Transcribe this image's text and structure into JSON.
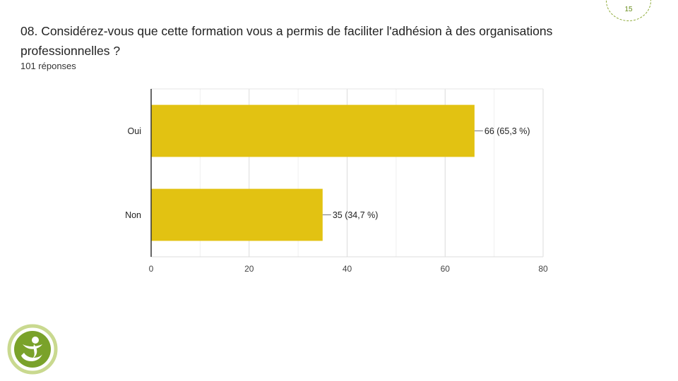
{
  "page": {
    "number": "15"
  },
  "question": {
    "title": "08. Considérez-vous que cette formation vous a permis de faciliter l'adhésion à des organisations professionnelles ?",
    "responses": "101 réponses"
  },
  "colors": {
    "bar": "#e2c212",
    "accent": "#8aa832"
  },
  "chart_data": {
    "type": "bar",
    "orientation": "horizontal",
    "categories": [
      "Oui",
      "Non"
    ],
    "values": [
      66,
      35
    ],
    "data_labels": [
      "66 (65,3 %)",
      "35 (34,7 %)"
    ],
    "x_ticks": [
      0,
      20,
      40,
      60,
      80
    ],
    "xlim": [
      0,
      80
    ],
    "grid": true,
    "legend": "none"
  }
}
